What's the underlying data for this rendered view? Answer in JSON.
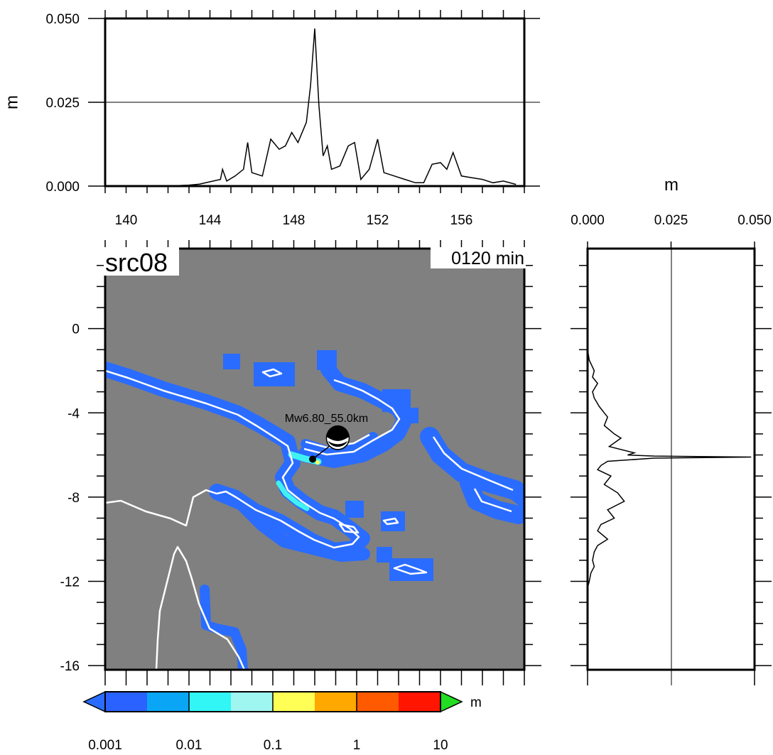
{
  "colors": {
    "ocean": "#808080",
    "coast": "#ffffff",
    "wave_low": "#2a6cff",
    "wave_mid": "#3ff2f2",
    "wave_high": "#ffff5a",
    "arrow_high": "#22dd22"
  },
  "map": {
    "source_label": "src08",
    "time_label": "0120 min",
    "event_label": "Mw6.80_55.0km",
    "x_range": [
      139,
      159
    ],
    "y_range": [
      -16.2,
      3.8
    ],
    "yticks": [
      "0",
      "-4",
      "-8",
      "-12",
      "-16"
    ],
    "ytick_values": [
      0,
      -4,
      -8,
      -12,
      -16
    ],
    "epicenter": {
      "lon": 148.9,
      "lat": -6.2
    },
    "beachball": {
      "lon": 150.1,
      "lat": -5.2
    }
  },
  "colorbar": {
    "ticks": [
      "0.001",
      "0.01",
      "0.1",
      "1",
      "10"
    ],
    "unit": "m",
    "colors": [
      "#2a62ff",
      "#0aa6f5",
      "#32f5f5",
      "#9ff5f0",
      "#ffff55",
      "#ffa800",
      "#ff5a00",
      "#ff1500"
    ]
  },
  "chart_data": [
    {
      "type": "line",
      "name": "top_profile",
      "ylabel": "m",
      "xlim": [
        139,
        159
      ],
      "ylim": [
        0,
        0.05
      ],
      "xticks": [
        "140",
        "144",
        "148",
        "152",
        "156"
      ],
      "xtick_values": [
        140,
        144,
        148,
        152,
        156
      ],
      "yticks": [
        "0.000",
        "0.025",
        "0.050"
      ],
      "ytick_values": [
        0,
        0.025,
        0.05
      ],
      "x": [
        142,
        143,
        143.5,
        144.5,
        144.6,
        144.8,
        145.2,
        145.6,
        145.8,
        146,
        146.5,
        146.9,
        147.3,
        147.6,
        147.9,
        148.2,
        148.6,
        148.8,
        149,
        149.2,
        149.4,
        149.6,
        149.8,
        150.2,
        150.6,
        150.9,
        151.2,
        151.6,
        152,
        152.3,
        152.8,
        153.3,
        153.8,
        154.2,
        154.6,
        155,
        155.3,
        155.6,
        156,
        156.5,
        157,
        157.5,
        158,
        158.6
      ],
      "y": [
        0,
        0.0003,
        0.0006,
        0.002,
        0.005,
        0.0015,
        0.003,
        0.005,
        0.013,
        0.004,
        0.003,
        0.014,
        0.011,
        0.012,
        0.016,
        0.013,
        0.019,
        0.03,
        0.047,
        0.024,
        0.009,
        0.012,
        0.005,
        0.006,
        0.012,
        0.013,
        0.002,
        0.005,
        0.014,
        0.004,
        0.003,
        0.002,
        0.001,
        0.001,
        0.0065,
        0.007,
        0.005,
        0.01,
        0.003,
        0.0025,
        0.002,
        0.001,
        0.0015,
        0.0005
      ]
    },
    {
      "type": "line",
      "name": "side_profile",
      "xlabel": "m",
      "xlim": [
        0,
        0.05
      ],
      "ylim": [
        -16.2,
        3.8
      ],
      "xticks": [
        "0.000",
        "0.025",
        "0.050"
      ],
      "xtick_values": [
        0,
        0.025,
        0.05
      ],
      "lat": [
        -1,
        -1.5,
        -2,
        -2.3,
        -2.6,
        -3,
        -3.3,
        -3.7,
        -4,
        -4.2,
        -4.6,
        -5,
        -5.2,
        -5.6,
        -5.9,
        -6,
        -6.05,
        -6.1,
        -6.15,
        -6.3,
        -6.5,
        -6.7,
        -7,
        -7.4,
        -7.8,
        -8.2,
        -8.6,
        -9,
        -9.3,
        -9.6,
        -10,
        -10.3,
        -10.6,
        -11,
        -11.3,
        -11.6,
        -12,
        -12.3
      ],
      "value": [
        0,
        0.0005,
        0.002,
        0.0015,
        0.003,
        0.0015,
        0.002,
        0.0035,
        0.005,
        0.006,
        0.005,
        0.008,
        0.01,
        0.0065,
        0.014,
        0.012,
        0.02,
        0.049,
        0.02,
        0.006,
        0.004,
        0.003,
        0.007,
        0.005,
        0.009,
        0.011,
        0.006,
        0.008,
        0.004,
        0.003,
        0.006,
        0.003,
        0.002,
        0.0015,
        0.002,
        0.001,
        0.0005,
        0
      ]
    }
  ]
}
